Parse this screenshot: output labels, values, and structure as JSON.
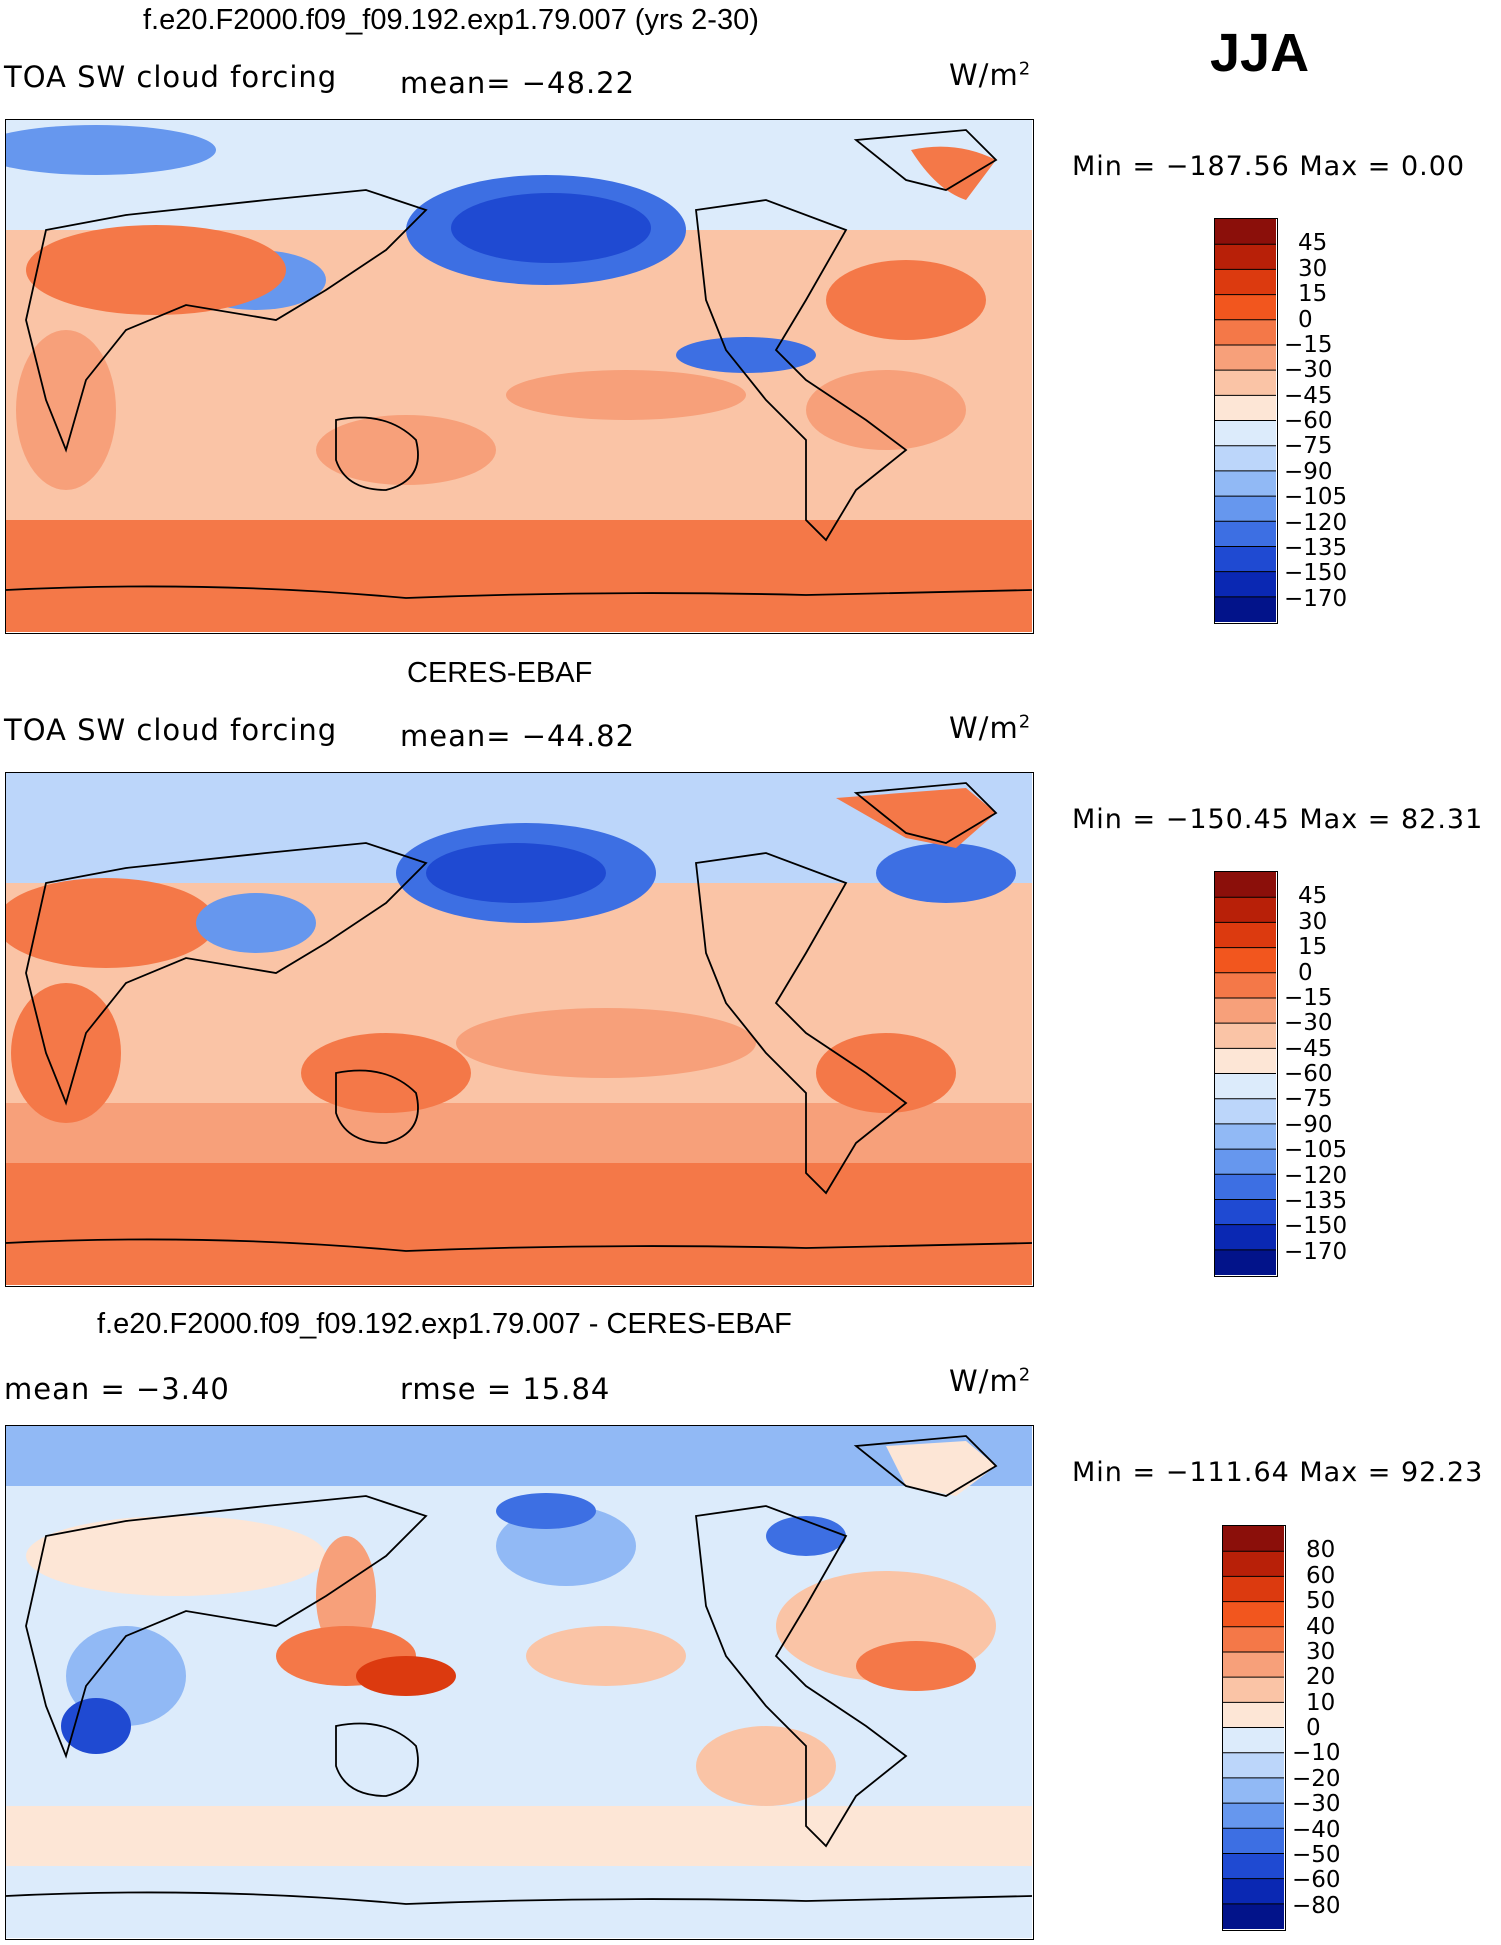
{
  "season": "JJA",
  "panels": [
    {
      "title": "f.e20.F2000.f09_f09.192.exp1.79.007 (yrs 2-30)",
      "left_label": "TOA SW cloud forcing",
      "center_label": "mean=  −48.22",
      "units": "W/m",
      "units_sup": "2",
      "minmax": "Min  =  −187.56  Max  =     0.00",
      "colorbar_levels": [
        "45",
        "30",
        "15",
        "0",
        "−15",
        "−30",
        "−45",
        "−60",
        "−75",
        "−90",
        "−105",
        "−120",
        "−135",
        "−150",
        "−170"
      ],
      "colorbar_colors": [
        "#8b0f0a",
        "#b82008",
        "#dc3a0f",
        "#f2561e",
        "#f47848",
        "#f7a07a",
        "#fac4a6",
        "#fde6d6",
        "#dcebfb",
        "#bcd6fa",
        "#91b9f5",
        "#6697ee",
        "#3d6fe3",
        "#1f4ad2",
        "#0a28b3",
        "#02138a"
      ]
    },
    {
      "title": "CERES-EBAF",
      "left_label": "TOA SW cloud forcing",
      "center_label": "mean=  −44.82",
      "units": "W/m",
      "units_sup": "2",
      "minmax": "Min  =  −150.45  Max  =   82.31",
      "colorbar_levels": [
        "45",
        "30",
        "15",
        "0",
        "−15",
        "−30",
        "−45",
        "−60",
        "−75",
        "−90",
        "−105",
        "−120",
        "−135",
        "−150",
        "−170"
      ],
      "colorbar_colors": [
        "#8b0f0a",
        "#b82008",
        "#dc3a0f",
        "#f2561e",
        "#f47848",
        "#f7a07a",
        "#fac4a6",
        "#fde6d6",
        "#dcebfb",
        "#bcd6fa",
        "#91b9f5",
        "#6697ee",
        "#3d6fe3",
        "#1f4ad2",
        "#0a28b3",
        "#02138a"
      ]
    },
    {
      "title": "f.e20.F2000.f09_f09.192.exp1.79.007 - CERES-EBAF",
      "left_label": "mean  =    −3.40",
      "center_label": "rmse  =    15.84",
      "units": "W/m",
      "units_sup": "2",
      "minmax": "Min  =  −111.64  Max  =   92.23",
      "colorbar_levels": [
        "80",
        "60",
        "50",
        "40",
        "30",
        "20",
        "10",
        "0",
        "−10",
        "−20",
        "−30",
        "−40",
        "−50",
        "−60",
        "−80"
      ],
      "colorbar_colors": [
        "#8b0f0a",
        "#b82008",
        "#dc3a0f",
        "#f2561e",
        "#f47848",
        "#f7a07a",
        "#fac4a6",
        "#fde6d6",
        "#dcebfb",
        "#bcd6fa",
        "#91b9f5",
        "#6697ee",
        "#3d6fe3",
        "#1f4ad2",
        "#0a28b3",
        "#02138a"
      ]
    }
  ]
}
